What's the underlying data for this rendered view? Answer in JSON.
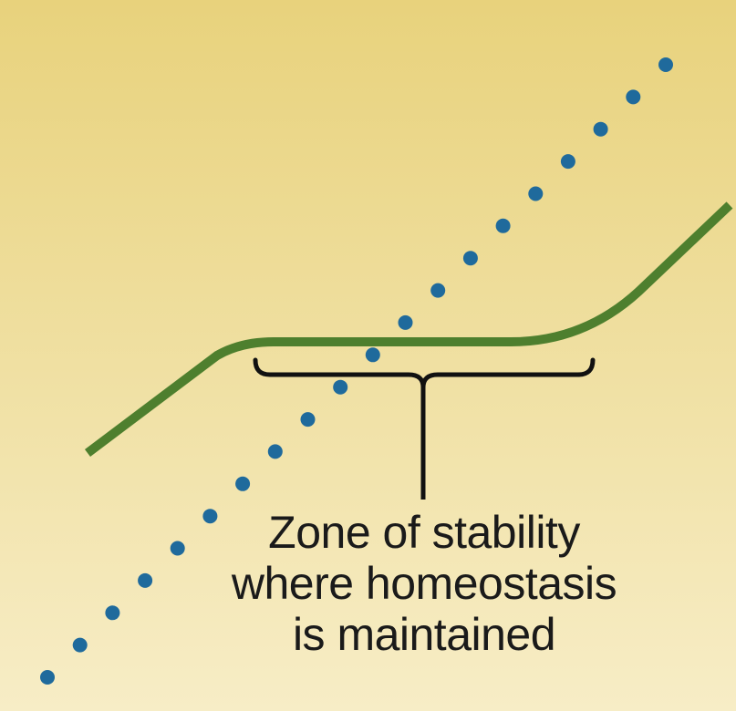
{
  "colors": {
    "background_top": "#E8D27C",
    "background_bottom": "#F7EDC6",
    "regulated_curve": "#4E7F2E",
    "dotted_line": "#1F6A9C",
    "bracket": "#111111",
    "text": "#1A1A1A"
  },
  "caption": {
    "line1": "Zone of stability",
    "line2": "where homeostasis",
    "line3": "is maintained"
  },
  "dots": {
    "count": 20
  }
}
